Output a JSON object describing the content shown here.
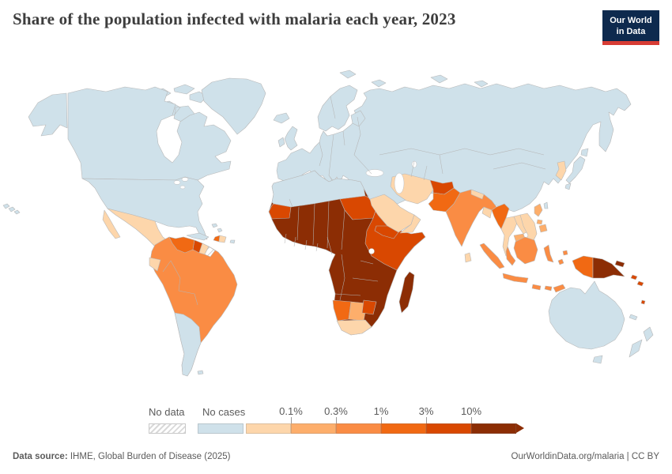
{
  "header": {
    "title": "Share of the population infected with malaria each year, 2023"
  },
  "logo": {
    "line1": "Our World",
    "line2": "in Data",
    "bg": "#0e2a4e",
    "accent": "#d73c34"
  },
  "legend": {
    "no_data_label": "No data",
    "bins": [
      {
        "key": "no_cases",
        "label": "No cases",
        "color": "#cfe1ea",
        "tick": ""
      },
      {
        "key": "lt01",
        "label": "<0.1%",
        "color": "#fdd6ab",
        "tick": "0.1%"
      },
      {
        "key": "p01_03",
        "label": "0.1%-0.3%",
        "color": "#fdae6b",
        "tick": "0.3%"
      },
      {
        "key": "p03_1",
        "label": "0.3%-1%",
        "color": "#fa8c44",
        "tick": "1%"
      },
      {
        "key": "p1_3",
        "label": "1%-3%",
        "color": "#f16913",
        "tick": "3%"
      },
      {
        "key": "p3_10",
        "label": "3%-10%",
        "color": "#d94801",
        "tick": "10%"
      },
      {
        "key": "gt10",
        "label": ">10%",
        "color": "#8c2d04",
        "tick": ""
      }
    ]
  },
  "footer": {
    "source_label": "Data source:",
    "source_text": " IHME, Global Burden of Disease (2025)",
    "link_text": "OurWorldinData.org/malaria | CC BY"
  },
  "map": {
    "border_color": "#b8b8b8",
    "ocean_color": "#ffffff",
    "region_bins": {
      "arctic-islands": "no_cases",
      "greenland": "no_cases",
      "iceland": "no_cases",
      "canada": "no_cases",
      "usa": "no_cases",
      "hawaii": "no_cases",
      "mexico": "lt01",
      "belize": "lt01",
      "guatemala": "p01_03",
      "honduras": "p03_1",
      "nicaragua": "p1_3",
      "costa-rica": "lt01",
      "panama": "p03_1",
      "cuba": "no_cases",
      "jamaica": "no_cases",
      "bahamas": "no_cases",
      "haiti": "p1_3",
      "dominican-republic": "lt01",
      "puerto-rico": "no_cases",
      "trinidad": "p03_1",
      "south-america-core": "p03_1",
      "venezuela": "p1_3",
      "guyana": "p3_10",
      "suriname": "lt01",
      "french-guiana": "no_data",
      "ecuador": "lt01",
      "southern-cone": "no_cases",
      "falklands": "no_cases",
      "eurasia": "no_cases",
      "scandinavia": "no_cases",
      "british-isles": "no_cases",
      "japan": "no_cases",
      "korea": "lt01",
      "taiwan": "no_cases",
      "africa": "gt10",
      "north-africa": "no_cases",
      "mauritania": "p3_10",
      "sudan": "p3_10",
      "horn-of-africa": "p3_10",
      "namibia": "p1_3",
      "botswana": "p01_03",
      "south-africa": "lt01",
      "zimbabwe": "p3_10",
      "madagascar": "gt10",
      "saudi-arabia": "lt01",
      "yemen": "p3_10",
      "oman": "lt01",
      "iran": "lt01",
      "afghanistan": "p3_10",
      "pakistan": "p1_3",
      "india": "p03_1",
      "nepal": "lt01",
      "bangladesh": "lt01",
      "sri-lanka": "lt01",
      "myanmar": "p1_3",
      "thailand": "lt01",
      "laos": "lt01",
      "vietnam": "lt01",
      "cambodia": "p01_03",
      "malaysia": "p03_1",
      "indonesia": "p03_1",
      "west-new-guinea": "p1_3",
      "papua-new-guinea": "gt10",
      "philippines": "p01_03",
      "solomon-islands": "p3_10",
      "vanuatu": "p3_10",
      "new-caledonia": "no_cases",
      "australia": "no_cases",
      "new-zealand": "no_cases"
    }
  },
  "chart_data": {
    "type": "choropleth",
    "title": "Share of the population infected with malaria each year, 2023",
    "year": 2023,
    "unit": "%",
    "legend_position": "bottom",
    "bins": [
      {
        "label": "No data",
        "color": "#ffffff-hatched"
      },
      {
        "label": "No cases",
        "color": "#cfe1ea"
      },
      {
        "label": "<0.1%",
        "color": "#fdd6ab"
      },
      {
        "label": "0.1%-0.3%",
        "color": "#fdae6b"
      },
      {
        "label": "0.3%-1%",
        "color": "#fa8c44"
      },
      {
        "label": "1%-3%",
        "color": "#f16913"
      },
      {
        "label": "3%-10%",
        "color": "#d94801"
      },
      {
        "label": ">10%",
        "color": "#8c2d04"
      }
    ],
    "entities": {
      "United States": "No cases",
      "Canada": "No cases",
      "Greenland": "No cases",
      "Europe (all countries)": "No cases",
      "Russia": "No cases",
      "Kazakhstan": "No cases",
      "Central Asia": "No cases",
      "China": "No cases",
      "Mongolia": "No cases",
      "Japan": "No cases",
      "Turkey": "No cases",
      "Iraq": "No cases",
      "Syria": "No cases",
      "Jordan": "No cases",
      "Morocco": "No cases",
      "Algeria": "No cases",
      "Tunisia": "No cases",
      "Libya": "No cases",
      "Egypt": "No cases",
      "Cuba": "No cases",
      "Jamaica": "No cases",
      "Puerto Rico": "No cases",
      "Chile": "No cases",
      "Argentina": "No cases",
      "Uruguay": "No cases",
      "Paraguay": "No cases",
      "Australia": "No cases",
      "New Zealand": "No cases",
      "Taiwan": "No cases",
      "Mexico": "<0.1%",
      "Belize": "<0.1%",
      "Costa Rica": "<0.1%",
      "Dominican Republic": "<0.1%",
      "Ecuador": "<0.1%",
      "Suriname": "<0.1%",
      "South Africa": "<0.1%",
      "Saudi Arabia": "<0.1%",
      "Oman": "<0.1%",
      "United Arab Emirates": "<0.1%",
      "Iran": "<0.1%",
      "Nepal": "<0.1%",
      "Bangladesh": "<0.1%",
      "Sri Lanka": "<0.1%",
      "Thailand": "<0.1%",
      "Laos": "<0.1%",
      "Vietnam": "<0.1%",
      "North Korea": "<0.1%",
      "South Korea": "<0.1%",
      "Guatemala": "0.1%-0.3%",
      "Cambodia": "0.1%-0.3%",
      "Philippines": "0.1%-0.3%",
      "Botswana": "0.1%-0.3%",
      "Colombia": "0.3%-1%",
      "Peru": "0.3%-1%",
      "Brazil": "0.3%-1%",
      "Bolivia": "0.3%-1%",
      "Honduras": "0.3%-1%",
      "Panama": "0.3%-1%",
      "Trinidad and Tobago": "0.3%-1%",
      "India": "0.3%-1%",
      "Malaysia": "0.3%-1%",
      "Indonesia": "0.3%-1%",
      "Venezuela": "1%-3%",
      "Haiti": "1%-3%",
      "Nicaragua": "1%-3%",
      "Pakistan": "1%-3%",
      "Myanmar": "1%-3%",
      "Namibia": "1%-3%",
      "Indonesian Papua": "1%-3%",
      "Guyana": "3%-10%",
      "Mauritania": "3%-10%",
      "Sudan": "3%-10%",
      "Eritrea": "3%-10%",
      "Djibouti": "3%-10%",
      "Ethiopia": "3%-10%",
      "Somalia": "3%-10%",
      "Kenya": "3%-10%",
      "Yemen": "3%-10%",
      "Afghanistan": "3%-10%",
      "Zimbabwe": "3%-10%",
      "Solomon Islands": "3%-10%",
      "Vanuatu": "3%-10%",
      "Senegal": ">10%",
      "Gambia": ">10%",
      "Guinea": ">10%",
      "Sierra Leone": ">10%",
      "Liberia": ">10%",
      "Cote d'Ivoire": ">10%",
      "Ghana": ">10%",
      "Togo": ">10%",
      "Benin": ">10%",
      "Nigeria": ">10%",
      "Mali": ">10%",
      "Burkina Faso": ">10%",
      "Niger": ">10%",
      "Chad": ">10%",
      "Cameroon": ">10%",
      "Central African Republic": ">10%",
      "South Sudan": ">10%",
      "DR Congo": ">10%",
      "Congo": ">10%",
      "Gabon": ">10%",
      "Uganda": ">10%",
      "Rwanda": ">10%",
      "Burundi": ">10%",
      "Tanzania": ">10%",
      "Zambia": ">10%",
      "Malawi": ">10%",
      "Mozambique": ">10%",
      "Angola": ">10%",
      "Madagascar": ">10%",
      "Papua New Guinea": ">10%",
      "French Guiana": "No data"
    }
  }
}
